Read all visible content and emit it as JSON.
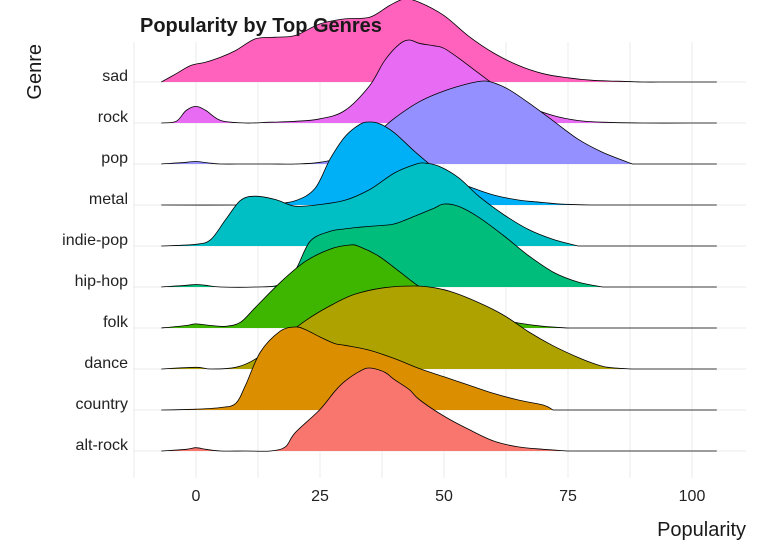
{
  "chart_data": {
    "type": "ridgeline",
    "title": "Popularity by Top Genres",
    "xlabel": "Popularity",
    "ylabel": "Genre",
    "xlim": [
      -7,
      106
    ],
    "x_ticks": [
      0,
      25,
      50,
      75,
      100
    ],
    "x_tick_labels": [
      "0",
      "25",
      "50",
      "75",
      "100"
    ],
    "grid": true,
    "legend": "none",
    "series": [
      {
        "name": "alt-rock",
        "color": "#F8766D",
        "x": [
          -7,
          -2,
          0,
          2,
          5,
          10,
          15,
          18,
          20,
          25,
          28,
          30,
          33,
          35,
          38,
          40,
          43,
          45,
          50,
          55,
          60,
          65,
          70,
          75
        ],
        "density": [
          0,
          0.02,
          0.04,
          0.02,
          0,
          0,
          0,
          0.05,
          0.22,
          0.5,
          0.72,
          0.84,
          0.96,
          1.0,
          0.95,
          0.86,
          0.74,
          0.62,
          0.42,
          0.26,
          0.12,
          0.05,
          0.02,
          0
        ]
      },
      {
        "name": "country",
        "color": "#DB8E00",
        "x": [
          -7,
          0,
          5,
          8,
          10,
          13,
          17,
          20,
          22,
          25,
          28,
          30,
          35,
          40,
          45,
          50,
          55,
          60,
          65,
          70,
          72
        ],
        "density": [
          0,
          0.01,
          0.03,
          0.08,
          0.3,
          0.7,
          0.95,
          1.0,
          0.97,
          0.88,
          0.8,
          0.78,
          0.72,
          0.62,
          0.5,
          0.4,
          0.3,
          0.2,
          0.12,
          0.06,
          0
        ]
      },
      {
        "name": "dance",
        "color": "#AEA200",
        "x": [
          -7,
          0,
          3,
          8,
          12,
          17,
          22,
          27,
          32,
          38,
          44,
          48,
          52,
          57,
          62,
          67,
          72,
          77,
          80,
          83,
          88
        ],
        "density": [
          0,
          0.02,
          0,
          0.02,
          0.12,
          0.35,
          0.58,
          0.76,
          0.9,
          0.98,
          1.0,
          0.98,
          0.92,
          0.8,
          0.65,
          0.45,
          0.28,
          0.14,
          0.07,
          0.02,
          0
        ]
      },
      {
        "name": "folk",
        "color": "#3EB600",
        "x": [
          -7,
          -2,
          0,
          3,
          6,
          9,
          12,
          17,
          22,
          27,
          31,
          33,
          37,
          41,
          45,
          50,
          55,
          60,
          65,
          70,
          75
        ],
        "density": [
          0,
          0.03,
          0.05,
          0.03,
          0.02,
          0.07,
          0.25,
          0.55,
          0.8,
          0.95,
          1.0,
          0.98,
          0.86,
          0.68,
          0.5,
          0.34,
          0.22,
          0.12,
          0.06,
          0.02,
          0
        ]
      },
      {
        "name": "hip-hop",
        "color": "#00BD7B",
        "x": [
          -7,
          -2,
          0,
          2,
          5,
          12,
          17,
          20,
          23,
          27,
          30,
          33,
          37,
          40,
          44,
          48,
          50,
          53,
          57,
          62,
          67,
          72,
          77,
          82
        ],
        "density": [
          0,
          0.02,
          0.03,
          0.02,
          0,
          0,
          0.03,
          0.2,
          0.55,
          0.67,
          0.7,
          0.72,
          0.74,
          0.76,
          0.85,
          0.95,
          1.0,
          0.97,
          0.84,
          0.62,
          0.38,
          0.18,
          0.06,
          0
        ]
      },
      {
        "name": "indie-pop",
        "color": "#00BFC4",
        "x": [
          -7,
          0,
          3,
          6,
          9,
          12,
          16,
          20,
          25,
          30,
          35,
          40,
          44,
          46,
          49,
          53,
          57,
          62,
          67,
          72,
          77
        ],
        "density": [
          0,
          0.02,
          0.08,
          0.32,
          0.55,
          0.6,
          0.56,
          0.48,
          0.5,
          0.55,
          0.68,
          0.88,
          0.98,
          1.0,
          0.96,
          0.82,
          0.6,
          0.38,
          0.2,
          0.08,
          0
        ]
      },
      {
        "name": "metal",
        "color": "#00B0F6",
        "x": [
          -7,
          10,
          15,
          20,
          24,
          27,
          30,
          33,
          35,
          37,
          40,
          44,
          48,
          52,
          56,
          60,
          65,
          70,
          74,
          80
        ],
        "density": [
          0,
          0,
          0.01,
          0.05,
          0.2,
          0.55,
          0.82,
          0.97,
          1.0,
          0.98,
          0.87,
          0.65,
          0.45,
          0.3,
          0.2,
          0.12,
          0.06,
          0.03,
          0.01,
          0
        ]
      },
      {
        "name": "pop",
        "color": "#9590FF",
        "x": [
          -7,
          -2,
          0,
          3,
          5,
          10,
          15,
          20,
          25,
          30,
          35,
          40,
          45,
          50,
          55,
          58,
          60,
          63,
          67,
          72,
          77,
          82,
          88
        ],
        "density": [
          0,
          0.02,
          0.03,
          0.01,
          0,
          0,
          0,
          0,
          0.02,
          0.1,
          0.3,
          0.55,
          0.75,
          0.88,
          0.97,
          1.0,
          0.98,
          0.9,
          0.74,
          0.52,
          0.3,
          0.14,
          0
        ]
      },
      {
        "name": "rock",
        "color": "#E76BF3",
        "x": [
          -7,
          -4,
          -2,
          0,
          2,
          5,
          10,
          15,
          20,
          25,
          30,
          35,
          38,
          41,
          43,
          45,
          48,
          50,
          53,
          57,
          62,
          67,
          72,
          77,
          82,
          90,
          100,
          105
        ],
        "density": [
          0,
          0.02,
          0.15,
          0.2,
          0.15,
          0.03,
          0,
          0.01,
          0.02,
          0.05,
          0.15,
          0.45,
          0.75,
          0.95,
          1.0,
          0.96,
          0.93,
          0.9,
          0.78,
          0.6,
          0.38,
          0.2,
          0.09,
          0.03,
          0.01,
          0,
          0,
          0
        ]
      },
      {
        "name": "sad",
        "color": "#FF62BC",
        "x": [
          -7,
          -4,
          -1,
          2,
          5,
          8,
          12,
          16,
          20,
          25,
          30,
          35,
          39,
          42,
          45,
          50,
          55,
          60,
          65,
          70,
          75,
          80,
          85,
          90,
          95,
          100,
          105
        ],
        "density": [
          0,
          0.1,
          0.2,
          0.24,
          0.3,
          0.38,
          0.52,
          0.54,
          0.56,
          0.7,
          0.76,
          0.78,
          0.92,
          1.0,
          0.96,
          0.8,
          0.55,
          0.35,
          0.2,
          0.1,
          0.05,
          0.02,
          0.01,
          0,
          0,
          0,
          0
        ]
      }
    ]
  }
}
